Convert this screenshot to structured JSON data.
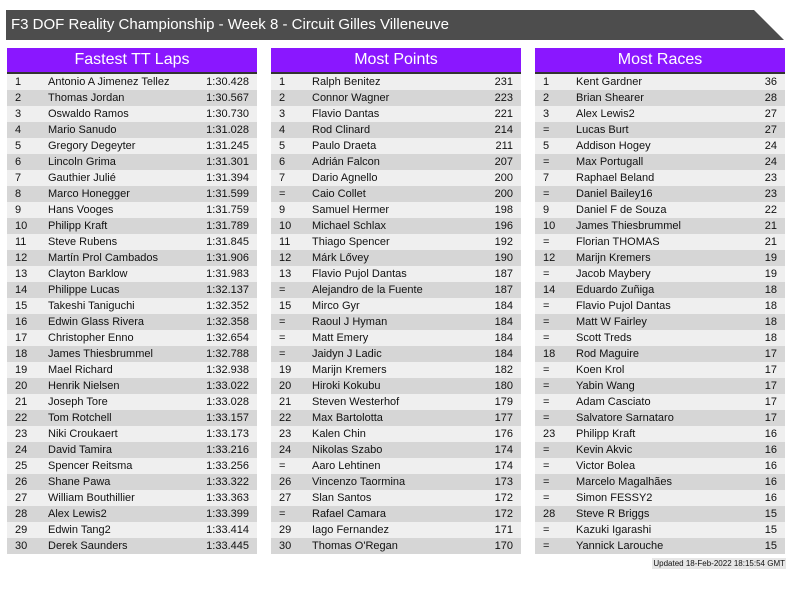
{
  "title": "F3 DOF Reality Championship - Week 8 - Circuit Gilles Villeneuve",
  "colors": {
    "header_bg": "#8a17ff",
    "title_bg": "#4d4d4d"
  },
  "tables": [
    {
      "heading": "Fastest TT Laps",
      "rows": [
        [
          "1",
          "Antonio A Jimenez Tellez",
          "1:30.428"
        ],
        [
          "2",
          "Thomas Jordan",
          "1:30.567"
        ],
        [
          "3",
          "Oswaldo Ramos",
          "1:30.730"
        ],
        [
          "4",
          "Mario Sanudo",
          "1:31.028"
        ],
        [
          "5",
          "Gregory Degeyter",
          "1:31.245"
        ],
        [
          "6",
          "Lincoln Grima",
          "1:31.301"
        ],
        [
          "7",
          "Gauthier Julié",
          "1:31.394"
        ],
        [
          "8",
          "Marco Honegger",
          "1:31.599"
        ],
        [
          "9",
          "Hans Vooges",
          "1:31.759"
        ],
        [
          "10",
          "Philipp Kraft",
          "1:31.789"
        ],
        [
          "11",
          "Steve Rubens",
          "1:31.845"
        ],
        [
          "12",
          "Martín Prol Cambados",
          "1:31.906"
        ],
        [
          "13",
          "Clayton Barklow",
          "1:31.983"
        ],
        [
          "14",
          "Philippe Lucas",
          "1:32.137"
        ],
        [
          "15",
          "Takeshi Taniguchi",
          "1:32.352"
        ],
        [
          "16",
          "Edwin Glass Rivera",
          "1:32.358"
        ],
        [
          "17",
          "Christopher Enno",
          "1:32.654"
        ],
        [
          "18",
          "James Thiesbrummel",
          "1:32.788"
        ],
        [
          "19",
          "Mael Richard",
          "1:32.938"
        ],
        [
          "20",
          "Henrik Nielsen",
          "1:33.022"
        ],
        [
          "21",
          "Joseph Tore",
          "1:33.028"
        ],
        [
          "22",
          "Tom Rotchell",
          "1:33.157"
        ],
        [
          "23",
          "Niki Croukaert",
          "1:33.173"
        ],
        [
          "24",
          "David Tamira",
          "1:33.216"
        ],
        [
          "25",
          "Spencer Reitsma",
          "1:33.256"
        ],
        [
          "26",
          "Shane Pawa",
          "1:33.322"
        ],
        [
          "27",
          "William Bouthillier",
          "1:33.363"
        ],
        [
          "28",
          "Alex Lewis2",
          "1:33.399"
        ],
        [
          "29",
          "Edwin Tang2",
          "1:33.414"
        ],
        [
          "30",
          "Derek Saunders",
          "1:33.445"
        ]
      ]
    },
    {
      "heading": "Most Points",
      "rows": [
        [
          "1",
          "Ralph Benitez",
          "231"
        ],
        [
          "2",
          "Connor Wagner",
          "223"
        ],
        [
          "3",
          "Flavio Dantas",
          "221"
        ],
        [
          "4",
          "Rod Clinard",
          "214"
        ],
        [
          "5",
          "Paulo Draeta",
          "211"
        ],
        [
          "6",
          "Adrián Falcon",
          "207"
        ],
        [
          "7",
          "Dario Agnello",
          "200"
        ],
        [
          "=",
          "Caio Collet",
          "200"
        ],
        [
          "9",
          "Samuel Hermer",
          "198"
        ],
        [
          "10",
          "Michael Schlax",
          "196"
        ],
        [
          "11",
          "Thiago Spencer",
          "192"
        ],
        [
          "12",
          "Márk Lővey",
          "190"
        ],
        [
          "13",
          "Flavio Pujol Dantas",
          "187"
        ],
        [
          "=",
          "Alejandro de la Fuente",
          "187"
        ],
        [
          "15",
          "Mirco Gyr",
          "184"
        ],
        [
          "=",
          "Raoul J Hyman",
          "184"
        ],
        [
          "=",
          "Matt Emery",
          "184"
        ],
        [
          "=",
          "Jaidyn J Ladic",
          "184"
        ],
        [
          "19",
          "Marijn Kremers",
          "182"
        ],
        [
          "20",
          "Hiroki Kokubu",
          "180"
        ],
        [
          "21",
          "Steven Westerhof",
          "179"
        ],
        [
          "22",
          "Max Bartolotta",
          "177"
        ],
        [
          "23",
          "Kalen Chin",
          "176"
        ],
        [
          "24",
          "Nikolas Szabo",
          "174"
        ],
        [
          "=",
          "Aaro Lehtinen",
          "174"
        ],
        [
          "26",
          "Vincenzo Taormina",
          "173"
        ],
        [
          "27",
          "Slan Santos",
          "172"
        ],
        [
          "=",
          "Rafael Camara",
          "172"
        ],
        [
          "29",
          "Iago Fernandez",
          "171"
        ],
        [
          "30",
          "Thomas O'Regan",
          "170"
        ]
      ]
    },
    {
      "heading": "Most Races",
      "rows": [
        [
          "1",
          "Kent Gardner",
          "36"
        ],
        [
          "2",
          "Brian Shearer",
          "28"
        ],
        [
          "3",
          "Alex Lewis2",
          "27"
        ],
        [
          "=",
          "Lucas Burt",
          "27"
        ],
        [
          "5",
          "Addison Hogey",
          "24"
        ],
        [
          "=",
          "Max Portugall",
          "24"
        ],
        [
          "7",
          "Raphael Beland",
          "23"
        ],
        [
          "=",
          "Daniel Bailey16",
          "23"
        ],
        [
          "9",
          "Daniel F de Souza",
          "22"
        ],
        [
          "10",
          "James Thiesbrummel",
          "21"
        ],
        [
          "=",
          "Florian THOMAS",
          "21"
        ],
        [
          "12",
          "Marijn Kremers",
          "19"
        ],
        [
          "=",
          "Jacob Maybery",
          "19"
        ],
        [
          "14",
          "Eduardo Zuñiga",
          "18"
        ],
        [
          "=",
          "Flavio Pujol Dantas",
          "18"
        ],
        [
          "=",
          "Matt W Fairley",
          "18"
        ],
        [
          "=",
          "Scott Treds",
          "18"
        ],
        [
          "18",
          "Rod Maguire",
          "17"
        ],
        [
          "=",
          "Koen Krol",
          "17"
        ],
        [
          "=",
          "Yabin Wang",
          "17"
        ],
        [
          "=",
          "Adam Casciato",
          "17"
        ],
        [
          "=",
          "Salvatore Sarnataro",
          "17"
        ],
        [
          "23",
          "Philipp Kraft",
          "16"
        ],
        [
          "=",
          "Kevin Akvic",
          "16"
        ],
        [
          "=",
          "Victor Bolea",
          "16"
        ],
        [
          "=",
          "Marcelo Magalhães",
          "16"
        ],
        [
          "=",
          "Simon FESSY2",
          "16"
        ],
        [
          "28",
          "Steve R Briggs",
          "15"
        ],
        [
          "=",
          "Kazuki Igarashi",
          "15"
        ],
        [
          "=",
          "Yannick Larouche",
          "15"
        ]
      ]
    }
  ],
  "footer": "Updated 18-Feb-2022 18:15:54 GMT"
}
